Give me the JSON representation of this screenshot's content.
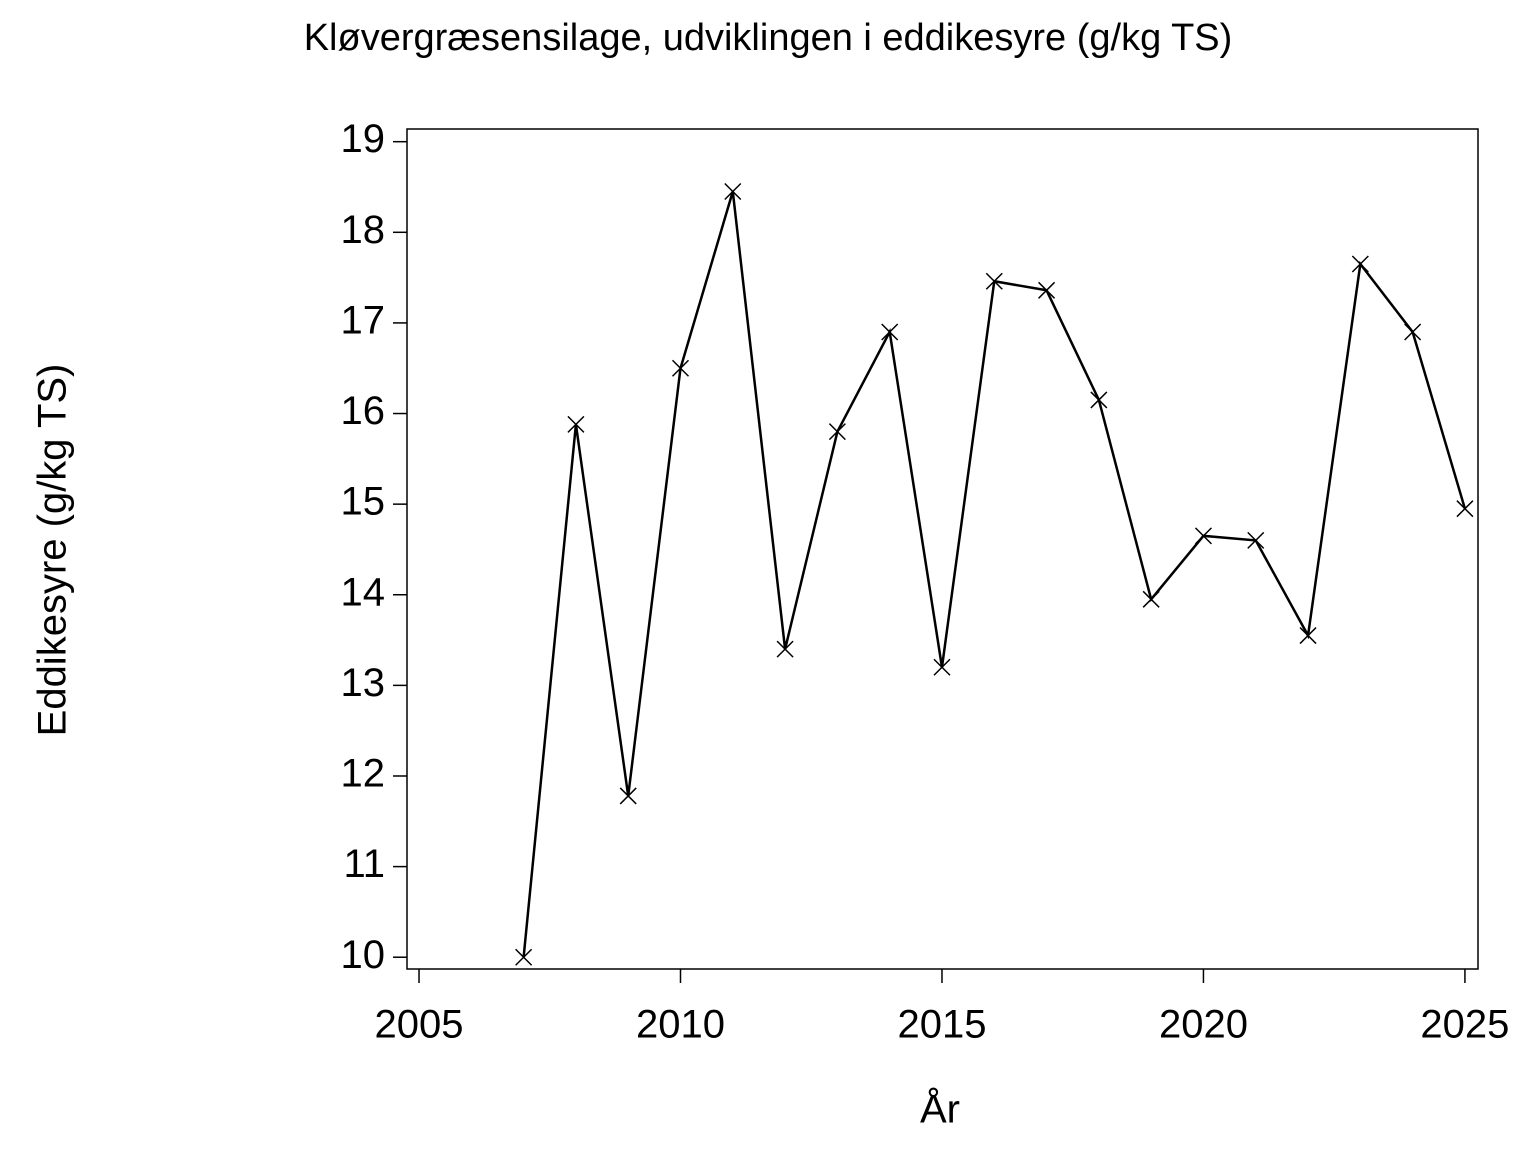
{
  "chart_data": {
    "type": "line",
    "title": "Kløvergræsensilage, udviklingen i eddikesyre (g/kg TS)",
    "x_label": "År",
    "y_label": "Eddikesyre (g/kg TS)",
    "x": [
      2007,
      2008,
      2009,
      2010,
      2011,
      2012,
      2013,
      2014,
      2015,
      2016,
      2017,
      2018,
      2019,
      2020,
      2021,
      2022,
      2023,
      2024,
      2025
    ],
    "series": [
      {
        "color": "#000000",
        "values": [
          10.0,
          15.88,
          11.78,
          16.5,
          18.45,
          13.4,
          15.8,
          16.9,
          13.2,
          17.46,
          17.36,
          16.15,
          13.95,
          14.65,
          14.6,
          13.55,
          17.65,
          16.9,
          14.95
        ]
      }
    ],
    "xlim": [
      2004.77,
      2025.25
    ],
    "ylim": [
      9.87,
      19.14
    ],
    "xticks": [
      2005,
      2010,
      2015,
      2020,
      2025
    ],
    "yticks": [
      10,
      11,
      12,
      13,
      14,
      15,
      16,
      17,
      18,
      19
    ],
    "marker": "x",
    "grid": false
  }
}
